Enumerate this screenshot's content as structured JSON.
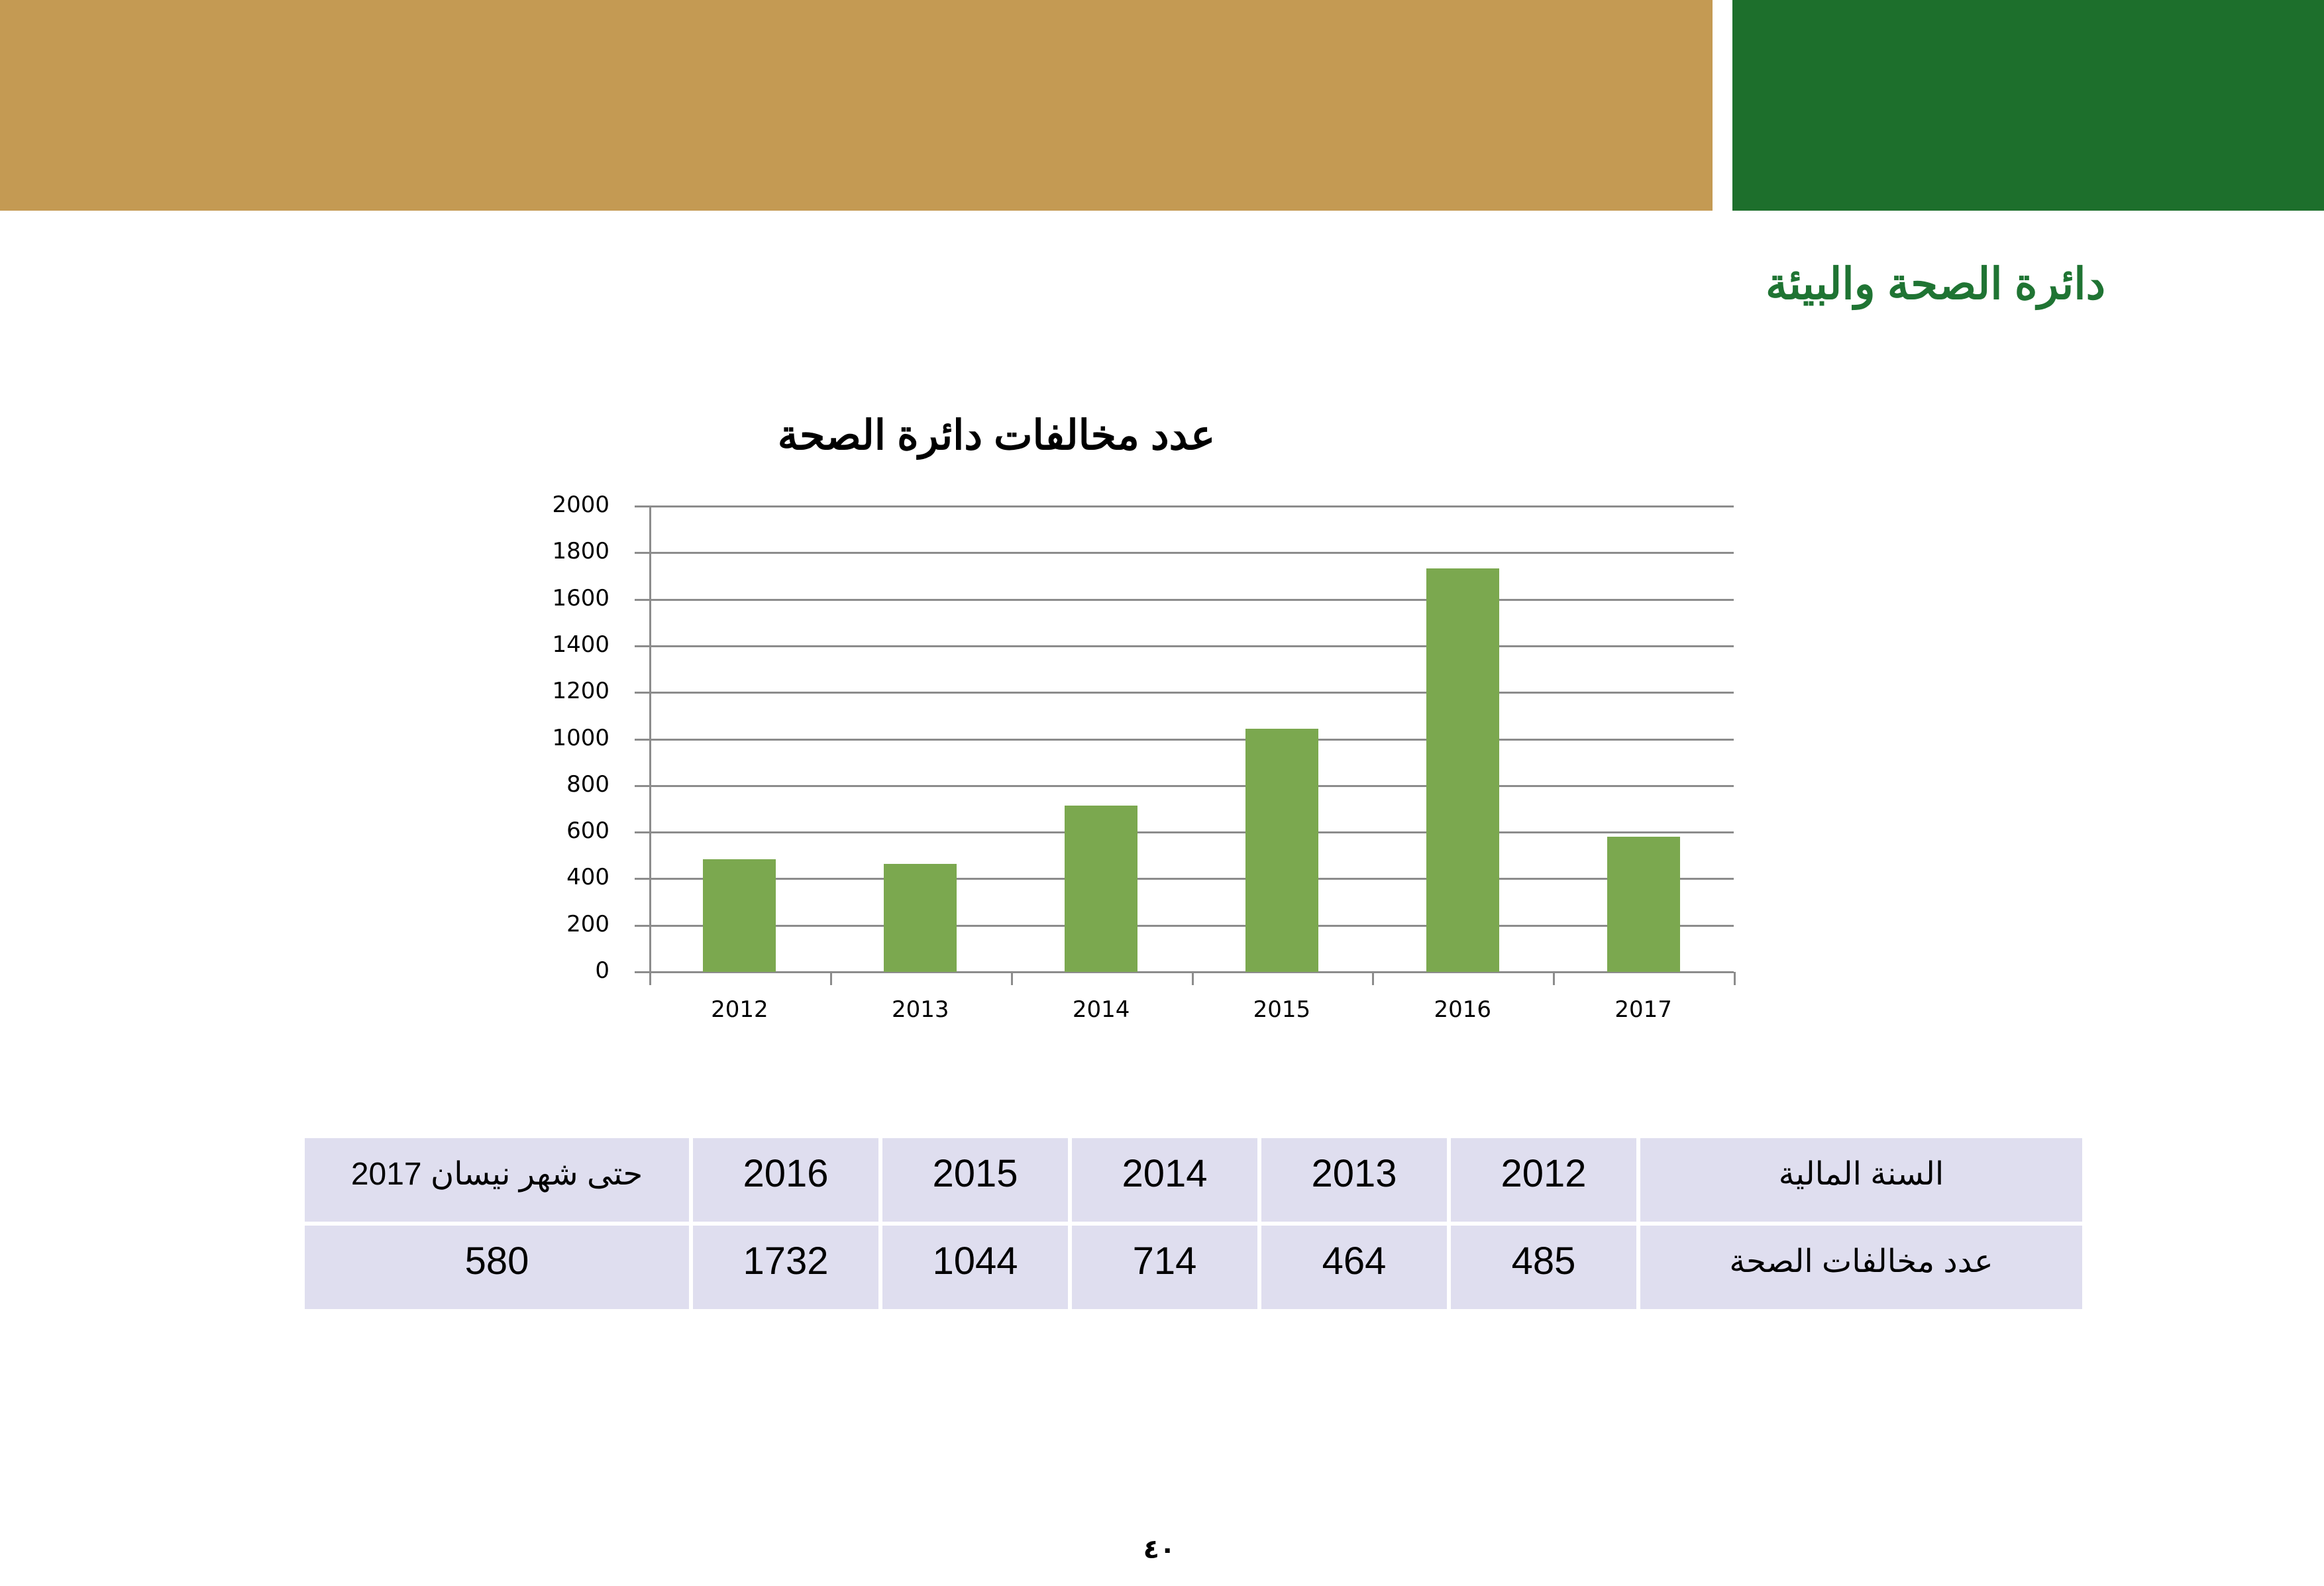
{
  "header": {
    "gold_color": "#c49a53",
    "green_color": "#1d6f2c",
    "department_title": "دائرة الصحة والبيئة",
    "department_title_color": "#1f7433"
  },
  "chart_data": {
    "type": "bar",
    "title": "عدد مخالفات دائرة الصحة",
    "categories": [
      "2012",
      "2013",
      "2014",
      "2015",
      "2016",
      "2017"
    ],
    "values": [
      485,
      464,
      714,
      1044,
      1732,
      580
    ],
    "xlabel": "",
    "ylabel": "",
    "ylim": [
      0,
      2000
    ],
    "yticks": [
      "0",
      "200",
      "400",
      "600",
      "800",
      "1000",
      "1200",
      "1400",
      "1600",
      "1800",
      "2000"
    ],
    "grid": true,
    "legend": "none",
    "bar_color": "#7ba84f"
  },
  "table": {
    "header_row": {
      "label": "السنة المالية",
      "cells": [
        "2012",
        "2013",
        "2014",
        "2015",
        "2016",
        "حتى شهر نيسان 2017"
      ]
    },
    "data_row": {
      "label": "عدد مخالفات الصحة",
      "cells": [
        "485",
        "464",
        "714",
        "1044",
        "1732",
        "580"
      ]
    }
  },
  "footer": {
    "page_number": "٤٠"
  }
}
